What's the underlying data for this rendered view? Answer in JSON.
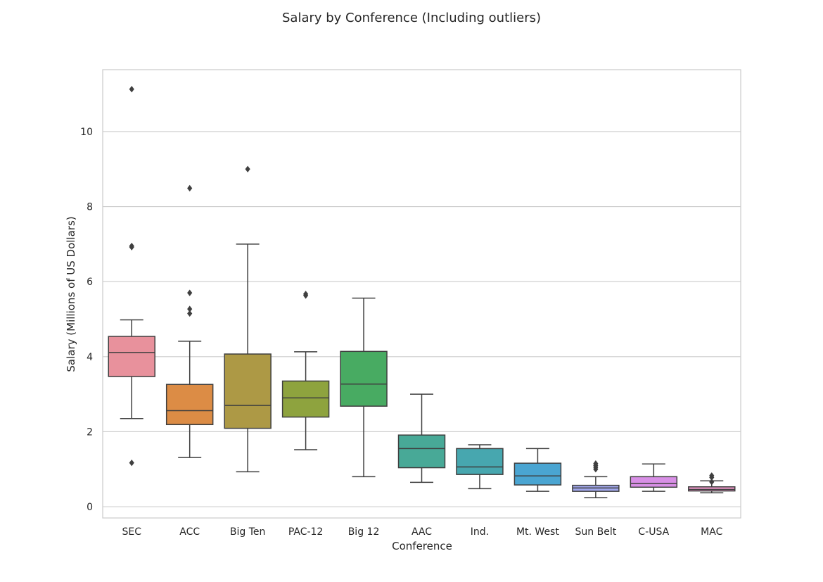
{
  "chart_data": {
    "type": "boxplot",
    "title": "Salary by Conference (Including outliers)",
    "xlabel": "Conference",
    "ylabel": "Salary (Millions of US Dollars)",
    "ylim": [
      -0.3,
      11.65
    ],
    "yticks": [
      0,
      2,
      4,
      6,
      8,
      10
    ],
    "grid": "horizontal",
    "style": "seaborn-whitegrid",
    "categories": [
      "SEC",
      "ACC",
      "Big Ten",
      "PAC-12",
      "Big 12",
      "AAC",
      "Ind.",
      "Mt. West",
      "Sun Belt",
      "C-USA",
      "MAC"
    ],
    "boxes": [
      {
        "name": "SEC",
        "color": "#e8919c",
        "whislo": 2.35,
        "q1": 3.47,
        "med": 4.11,
        "q3": 4.54,
        "whishi": 4.98,
        "fliers": [
          11.13,
          6.95,
          6.92,
          1.17
        ]
      },
      {
        "name": "ACC",
        "color": "#dc8c45",
        "whislo": 1.31,
        "q1": 2.19,
        "med": 2.56,
        "q3": 3.26,
        "whishi": 4.41,
        "fliers": [
          8.49,
          5.7,
          5.27,
          5.15
        ]
      },
      {
        "name": "Big Ten",
        "color": "#ad9945",
        "whislo": 0.93,
        "q1": 2.09,
        "med": 2.7,
        "q3": 4.07,
        "whishi": 7.0,
        "fliers": [
          9.0
        ]
      },
      {
        "name": "PAC-12",
        "color": "#8ea33e",
        "whislo": 1.52,
        "q1": 2.39,
        "med": 2.9,
        "q3": 3.35,
        "whishi": 4.13,
        "fliers": [
          5.67,
          5.63
        ]
      },
      {
        "name": "Big 12",
        "color": "#48ab62",
        "whislo": 0.8,
        "q1": 2.68,
        "med": 3.27,
        "q3": 4.14,
        "whishi": 5.56,
        "fliers": []
      },
      {
        "name": "AAC",
        "color": "#48a997",
        "whislo": 0.65,
        "q1": 1.04,
        "med": 1.55,
        "q3": 1.91,
        "whishi": 3.0,
        "fliers": []
      },
      {
        "name": "Ind.",
        "color": "#47a7af",
        "whislo": 0.48,
        "q1": 0.86,
        "med": 1.06,
        "q3": 1.55,
        "whishi": 1.65,
        "fliers": []
      },
      {
        "name": "Mt. West",
        "color": "#4aa5d2",
        "whislo": 0.41,
        "q1": 0.58,
        "med": 0.82,
        "q3": 1.16,
        "whishi": 1.55,
        "fliers": []
      },
      {
        "name": "Sun Belt",
        "color": "#a1a7ec",
        "whislo": 0.24,
        "q1": 0.41,
        "med": 0.5,
        "q3": 0.57,
        "whishi": 0.8,
        "fliers": [
          1.15,
          1.1,
          1.05,
          1.0
        ]
      },
      {
        "name": "C-USA",
        "color": "#d88fe6",
        "whislo": 0.41,
        "q1": 0.52,
        "med": 0.62,
        "q3": 0.8,
        "whishi": 1.14,
        "fliers": []
      },
      {
        "name": "MAC",
        "color": "#e592c2",
        "whislo": 0.37,
        "q1": 0.42,
        "med": 0.46,
        "q3": 0.53,
        "whishi": 0.69,
        "fliers": [
          0.83,
          0.78,
          0.66
        ]
      }
    ]
  }
}
